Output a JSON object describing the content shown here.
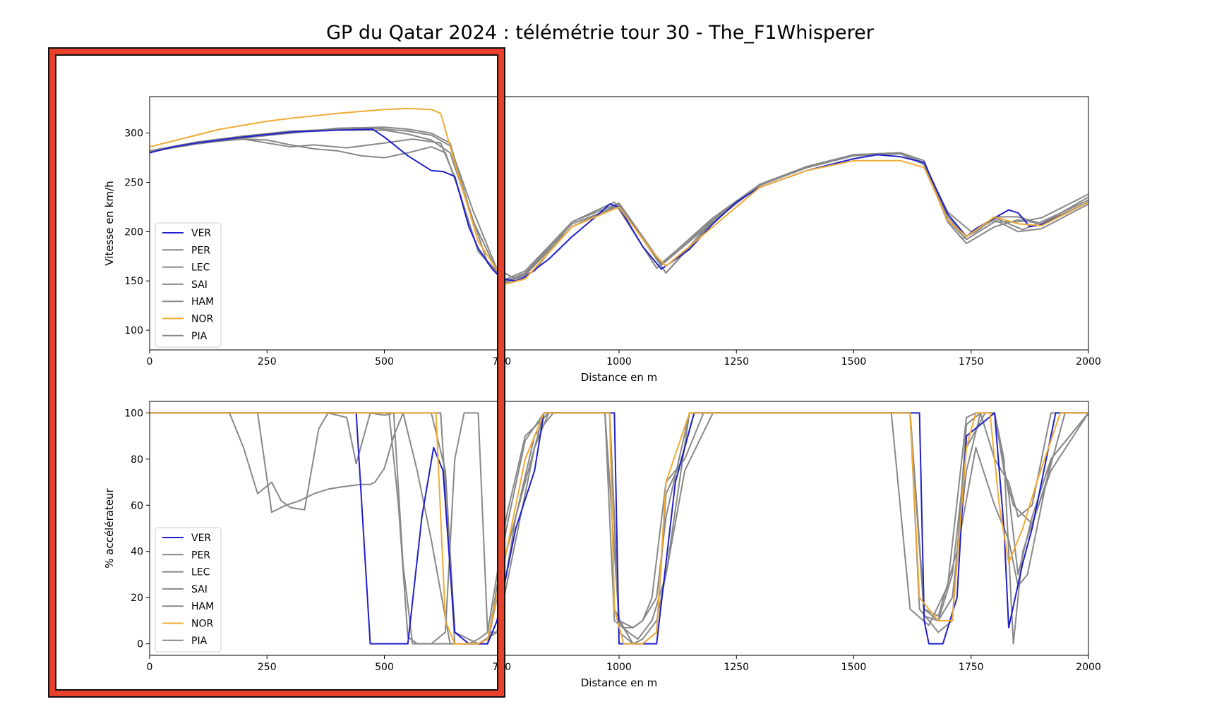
{
  "chart_data": [
    {
      "type": "line",
      "title": "GP du Qatar 2024 : télémétrie tour 30 - The_F1Whisperer",
      "xlabel": "Distance en m",
      "ylabel": "Vitesse en km/h",
      "xlim": [
        0,
        2000
      ],
      "ylim": [
        80,
        337
      ],
      "xticks": [
        0,
        250,
        500,
        750,
        1000,
        1250,
        1500,
        1750,
        2000
      ],
      "xtick_labels": [
        "0",
        "250",
        "500",
        "750",
        "1000",
        "1250",
        "1500",
        "1750",
        "2000"
      ],
      "yticks": [
        100,
        150,
        200,
        250,
        300
      ],
      "legend": "lower-left",
      "series": [
        {
          "name": "VER",
          "color": "#1f1fcc",
          "x": [
            0,
            50,
            100,
            200,
            300,
            400,
            475,
            500,
            550,
            600,
            625,
            650,
            680,
            700,
            730,
            750,
            780,
            800,
            850,
            900,
            950,
            980,
            1000,
            1050,
            1090,
            1150,
            1200,
            1250,
            1300,
            1400,
            1500,
            1550,
            1600,
            1650,
            1700,
            1740,
            1760,
            1800,
            1830,
            1850,
            1875,
            1900,
            1950,
            2000
          ],
          "y": [
            280,
            286,
            290,
            296,
            301,
            303,
            304,
            296,
            277,
            262,
            261,
            256,
            205,
            183,
            162,
            152,
            150,
            154,
            172,
            195,
            215,
            228,
            225,
            185,
            162,
            182,
            208,
            230,
            245,
            262,
            274,
            278,
            276,
            270,
            218,
            195,
            203,
            214,
            222,
            219,
            205,
            207,
            218,
            230
          ]
        },
        {
          "name": "PER",
          "color": "#888888",
          "x": [
            0,
            100,
            200,
            300,
            400,
            500,
            550,
            600,
            640,
            680,
            720,
            760,
            800,
            900,
            1000,
            1090,
            1200,
            1300,
            1400,
            1500,
            1600,
            1650,
            1700,
            1740,
            1800,
            1850,
            1900,
            2000
          ],
          "y": [
            281,
            289,
            295,
            300,
            305,
            306,
            304,
            300,
            290,
            225,
            168,
            150,
            158,
            208,
            226,
            166,
            210,
            247,
            265,
            277,
            279,
            270,
            215,
            195,
            215,
            215,
            208,
            235
          ]
        },
        {
          "name": "LEC",
          "color": "#888888",
          "x": [
            0,
            100,
            200,
            300,
            400,
            480,
            550,
            600,
            640,
            690,
            740,
            780,
            820,
            900,
            990,
            1080,
            1200,
            1300,
            1400,
            1500,
            1600,
            1650,
            1700,
            1730,
            1760,
            1800,
            1860,
            1900,
            2000
          ],
          "y": [
            281,
            290,
            297,
            302,
            304,
            305,
            302,
            298,
            287,
            220,
            162,
            152,
            160,
            210,
            230,
            163,
            214,
            248,
            266,
            278,
            280,
            272,
            210,
            193,
            200,
            214,
            202,
            210,
            232
          ]
        },
        {
          "name": "SAI",
          "color": "#888888",
          "x": [
            0,
            100,
            200,
            250,
            300,
            350,
            420,
            500,
            560,
            620,
            650,
            700,
            760,
            800,
            900,
            1000,
            1100,
            1200,
            1300,
            1400,
            1500,
            1600,
            1650,
            1700,
            1750,
            1800,
            1850,
            1900,
            2000
          ],
          "y": [
            282,
            290,
            294,
            290,
            286,
            288,
            285,
            290,
            294,
            290,
            255,
            180,
            150,
            157,
            205,
            228,
            158,
            210,
            248,
            266,
            278,
            280,
            268,
            220,
            200,
            212,
            200,
            203,
            228
          ]
        },
        {
          "name": "HAM",
          "color": "#888888",
          "x": [
            0,
            100,
            200,
            250,
            300,
            350,
            400,
            450,
            500,
            550,
            600,
            630,
            660,
            700,
            760,
            800,
            900,
            1000,
            1100,
            1200,
            1300,
            1400,
            1500,
            1600,
            1650,
            1700,
            1740,
            1800,
            1850,
            1900,
            2000
          ],
          "y": [
            282,
            290,
            294,
            293,
            288,
            284,
            282,
            277,
            275,
            280,
            286,
            280,
            240,
            180,
            148,
            156,
            205,
            228,
            158,
            212,
            248,
            266,
            278,
            280,
            268,
            210,
            188,
            205,
            212,
            208,
            230
          ]
        },
        {
          "name": "NOR",
          "color": "#f0ac34",
          "x": [
            0,
            50,
            100,
            150,
            200,
            250,
            300,
            400,
            500,
            550,
            600,
            620,
            650,
            700,
            760,
            800,
            900,
            1000,
            1070,
            1100,
            1200,
            1300,
            1400,
            1500,
            1600,
            1650,
            1700,
            1740,
            1800,
            1850,
            1900,
            2000
          ],
          "y": [
            286,
            292,
            298,
            304,
            308,
            312,
            315,
            320,
            324,
            325,
            324,
            320,
            270,
            190,
            147,
            152,
            205,
            225,
            180,
            165,
            205,
            245,
            262,
            272,
            272,
            265,
            212,
            195,
            215,
            208,
            206,
            230
          ]
        },
        {
          "name": "PIA",
          "color": "#888888",
          "x": [
            0,
            100,
            200,
            300,
            400,
            500,
            550,
            600,
            640,
            690,
            750,
            800,
            900,
            1000,
            1090,
            1200,
            1300,
            1400,
            1500,
            1600,
            1650,
            1700,
            1740,
            1800,
            1850,
            1900,
            2000
          ],
          "y": [
            282,
            291,
            297,
            301,
            303,
            303,
            299,
            293,
            280,
            210,
            150,
            160,
            210,
            229,
            168,
            212,
            247,
            265,
            278,
            279,
            268,
            212,
            192,
            210,
            210,
            214,
            238
          ]
        }
      ]
    },
    {
      "type": "line",
      "xlabel": "Distance en m",
      "ylabel": "% accélérateur",
      "xlim": [
        0,
        2000
      ],
      "ylim": [
        -5,
        105
      ],
      "xticks": [
        0,
        250,
        500,
        750,
        1000,
        1250,
        1500,
        1750,
        2000
      ],
      "xtick_labels": [
        "0",
        "250",
        "500",
        "750",
        "1000",
        "1250",
        "1500",
        "1750",
        "2000"
      ],
      "yticks": [
        0,
        20,
        40,
        60,
        80,
        100
      ],
      "legend": "lower-left",
      "series": [
        {
          "name": "VER",
          "color": "#1f1fcc",
          "x": [
            0,
            390,
            440,
            470,
            500,
            550,
            580,
            605,
            625,
            650,
            680,
            720,
            740,
            780,
            820,
            840,
            990,
            1000,
            1080,
            1120,
            1160,
            1640,
            1650,
            1660,
            1690,
            1720,
            1740,
            1800,
            1820,
            1830,
            1860,
            1880,
            1930,
            2000
          ],
          "y": [
            100,
            100,
            100,
            0,
            0,
            0,
            55,
            85,
            75,
            5,
            0,
            0,
            10,
            50,
            75,
            100,
            100,
            0,
            0,
            70,
            100,
            100,
            10,
            0,
            0,
            20,
            90,
            100,
            50,
            7,
            35,
            50,
            100,
            100
          ]
        },
        {
          "name": "PER",
          "color": "#888888",
          "x": [
            0,
            490,
            510,
            530,
            550,
            570,
            620,
            650,
            680,
            700,
            720,
            740,
            780,
            820,
            850,
            970,
            990,
            1020,
            1040,
            1070,
            1100,
            1140,
            1200,
            1580,
            1620,
            1660,
            1700,
            1740,
            1760,
            1800,
            1820,
            1840,
            1860,
            1910,
            1950,
            2000
          ],
          "y": [
            100,
            100,
            100,
            60,
            3,
            0,
            0,
            0,
            0,
            2,
            5,
            5,
            45,
            85,
            100,
            100,
            10,
            5,
            2,
            10,
            30,
            75,
            100,
            100,
            15,
            8,
            25,
            98,
            100,
            100,
            80,
            0,
            40,
            70,
            100,
            100
          ]
        },
        {
          "name": "LEC",
          "color": "#888888",
          "x": [
            0,
            580,
            600,
            630,
            650,
            700,
            720,
            760,
            800,
            840,
            970,
            1000,
            1030,
            1050,
            1080,
            1100,
            1150,
            1620,
            1640,
            1680,
            1710,
            1740,
            1770,
            1800,
            1830,
            1850,
            1880,
            1920,
            2000
          ],
          "y": [
            100,
            100,
            100,
            75,
            5,
            0,
            0,
            40,
            70,
            100,
            100,
            10,
            0,
            2,
            10,
            30,
            100,
            100,
            15,
            5,
            10,
            95,
            100,
            80,
            70,
            55,
            60,
            100,
            100
          ]
        },
        {
          "name": "SAI",
          "color": "#888888",
          "x": [
            0,
            170,
            200,
            230,
            260,
            280,
            300,
            330,
            360,
            380,
            420,
            440,
            470,
            500,
            520,
            540,
            560,
            580,
            600,
            630,
            650,
            670,
            700,
            720,
            760,
            800,
            850,
            980,
            990,
            1010,
            1030,
            1050,
            1080,
            1100,
            1150,
            1620,
            1650,
            1680,
            1710,
            1740,
            1780,
            1800,
            1820,
            1840,
            1880,
            1920,
            2000
          ],
          "y": [
            100,
            100,
            85,
            65,
            70,
            62,
            59,
            58,
            93,
            100,
            98,
            78,
            100,
            99,
            100,
            34,
            0,
            0,
            0,
            5,
            80,
            100,
            100,
            5,
            55,
            90,
            100,
            100,
            15,
            7,
            7,
            10,
            20,
            55,
            100,
            100,
            12,
            10,
            30,
            85,
            100,
            100,
            75,
            60,
            52,
            75,
            100
          ]
        },
        {
          "name": "HAM",
          "color": "#888888",
          "x": [
            0,
            230,
            260,
            290,
            320,
            350,
            380,
            410,
            450,
            470,
            480,
            500,
            520,
            540,
            570,
            600,
            640,
            660,
            700,
            740,
            780,
            820,
            860,
            980,
            1000,
            1030,
            1050,
            1070,
            1100,
            1140,
            1180,
            1620,
            1650,
            1680,
            1720,
            1760,
            1800,
            1830,
            1850,
            1870,
            1920,
            2000
          ],
          "y": [
            100,
            100,
            57,
            60,
            62,
            65,
            67,
            68,
            69,
            69,
            70,
            76,
            90,
            100,
            75,
            45,
            0,
            0,
            0,
            5,
            55,
            90,
            100,
            100,
            10,
            7,
            10,
            20,
            70,
            80,
            100,
            100,
            15,
            12,
            40,
            85,
            60,
            45,
            25,
            30,
            80,
            100
          ]
        },
        {
          "name": "NOR",
          "color": "#f0ac34",
          "x": [
            0,
            590,
            610,
            630,
            650,
            700,
            720,
            760,
            800,
            840,
            980,
            990,
            1010,
            1050,
            1080,
            1100,
            1150,
            1620,
            1640,
            1680,
            1710,
            1740,
            1760,
            1790,
            1810,
            1830,
            1860,
            1890,
            1940,
            2000
          ],
          "y": [
            100,
            100,
            100,
            10,
            0,
            0,
            2,
            40,
            80,
            100,
            100,
            15,
            0,
            0,
            5,
            70,
            100,
            100,
            20,
            10,
            10,
            85,
            100,
            100,
            60,
            35,
            50,
            70,
            100,
            100
          ]
        },
        {
          "name": "PIA",
          "color": "#888888",
          "x": [
            0,
            590,
            620,
            650,
            680,
            720,
            760,
            800,
            840,
            980,
            1000,
            1030,
            1050,
            1080,
            1100,
            1130,
            1160,
            1620,
            1650,
            1680,
            1710,
            1740,
            1770,
            1800,
            1830,
            1850,
            1880,
            1920,
            2000
          ],
          "y": [
            100,
            100,
            100,
            0,
            0,
            0,
            50,
            88,
            100,
            100,
            5,
            0,
            0,
            5,
            65,
            78,
            100,
            100,
            15,
            10,
            20,
            75,
            100,
            100,
            65,
            30,
            55,
            80,
            100
          ]
        }
      ]
    }
  ],
  "highlight_box": {
    "color": "#e8402a",
    "border": "#111111"
  }
}
